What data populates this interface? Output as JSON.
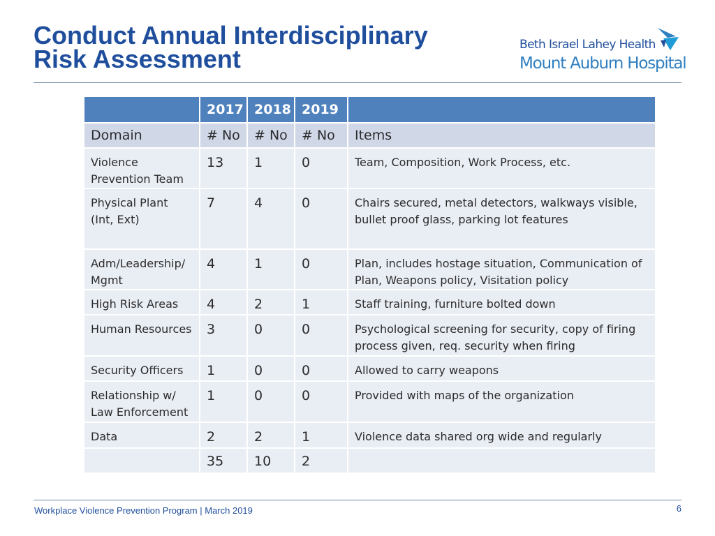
{
  "title": {
    "line1": "Conduct Annual Interdisciplinary",
    "line2": "Risk Assessment"
  },
  "logo": {
    "line1": "Beth Israel Lahey Health",
    "line2": "Mount Auburn Hospital",
    "mark_icon": "bird-wing-icon",
    "colors": {
      "dark": "#1f4e9c",
      "light": "#2f7fc1"
    }
  },
  "table": {
    "years": [
      "2017",
      "2018",
      "2019"
    ],
    "headers": {
      "domain": "Domain",
      "no_2017": "# No",
      "no_2018": "# No",
      "no_2019": "# No",
      "items": "Items"
    },
    "rows": [
      {
        "domain": "Violence Prevention Team",
        "v2017": "13",
        "v2018": "1",
        "v2019": "0",
        "items": "Team, Composition, Work Process, etc."
      },
      {
        "domain": "Physical Plant (Int, Ext)",
        "v2017": "7",
        "v2018": "4",
        "v2019": "0",
        "items": "Chairs secured, metal detectors, walkways visible, bullet proof glass, parking lot features"
      },
      {
        "domain": "Adm/Leadership/ Mgmt",
        "v2017": "4",
        "v2018": "1",
        "v2019": "0",
        "items": "Plan, includes hostage situation, Communication of Plan, Weapons policy, Visitation policy"
      },
      {
        "domain": "High Risk Areas",
        "v2017": "4",
        "v2018": "2",
        "v2019": "1",
        "items": "Staff training, furniture bolted down"
      },
      {
        "domain": "Human Resources",
        "v2017": "3",
        "v2018": "0",
        "v2019": "0",
        "items": "Psychological screening for security, copy of firing process given, req. security when firing"
      },
      {
        "domain": "Security Officers",
        "v2017": "1",
        "v2018": "0",
        "v2019": "0",
        "items": "Allowed to carry weapons"
      },
      {
        "domain": "Relationship w/ Law Enforcement",
        "v2017": "1",
        "v2018": "0",
        "v2019": "0",
        "items": "Provided with maps of the organization"
      },
      {
        "domain": "Data",
        "v2017": "2",
        "v2018": "2",
        "v2019": "1",
        "items": "Violence data shared org wide and regularly"
      }
    ],
    "totals": {
      "v2017": "35",
      "v2018": "10",
      "v2019": "2"
    },
    "colors": {
      "year_header": "#4f81bd",
      "column_header": "#d0d8e8",
      "row": "#e9edf4"
    }
  },
  "footer": {
    "text": "Workplace Violence Prevention Program | March 2019",
    "page_number": "6"
  }
}
